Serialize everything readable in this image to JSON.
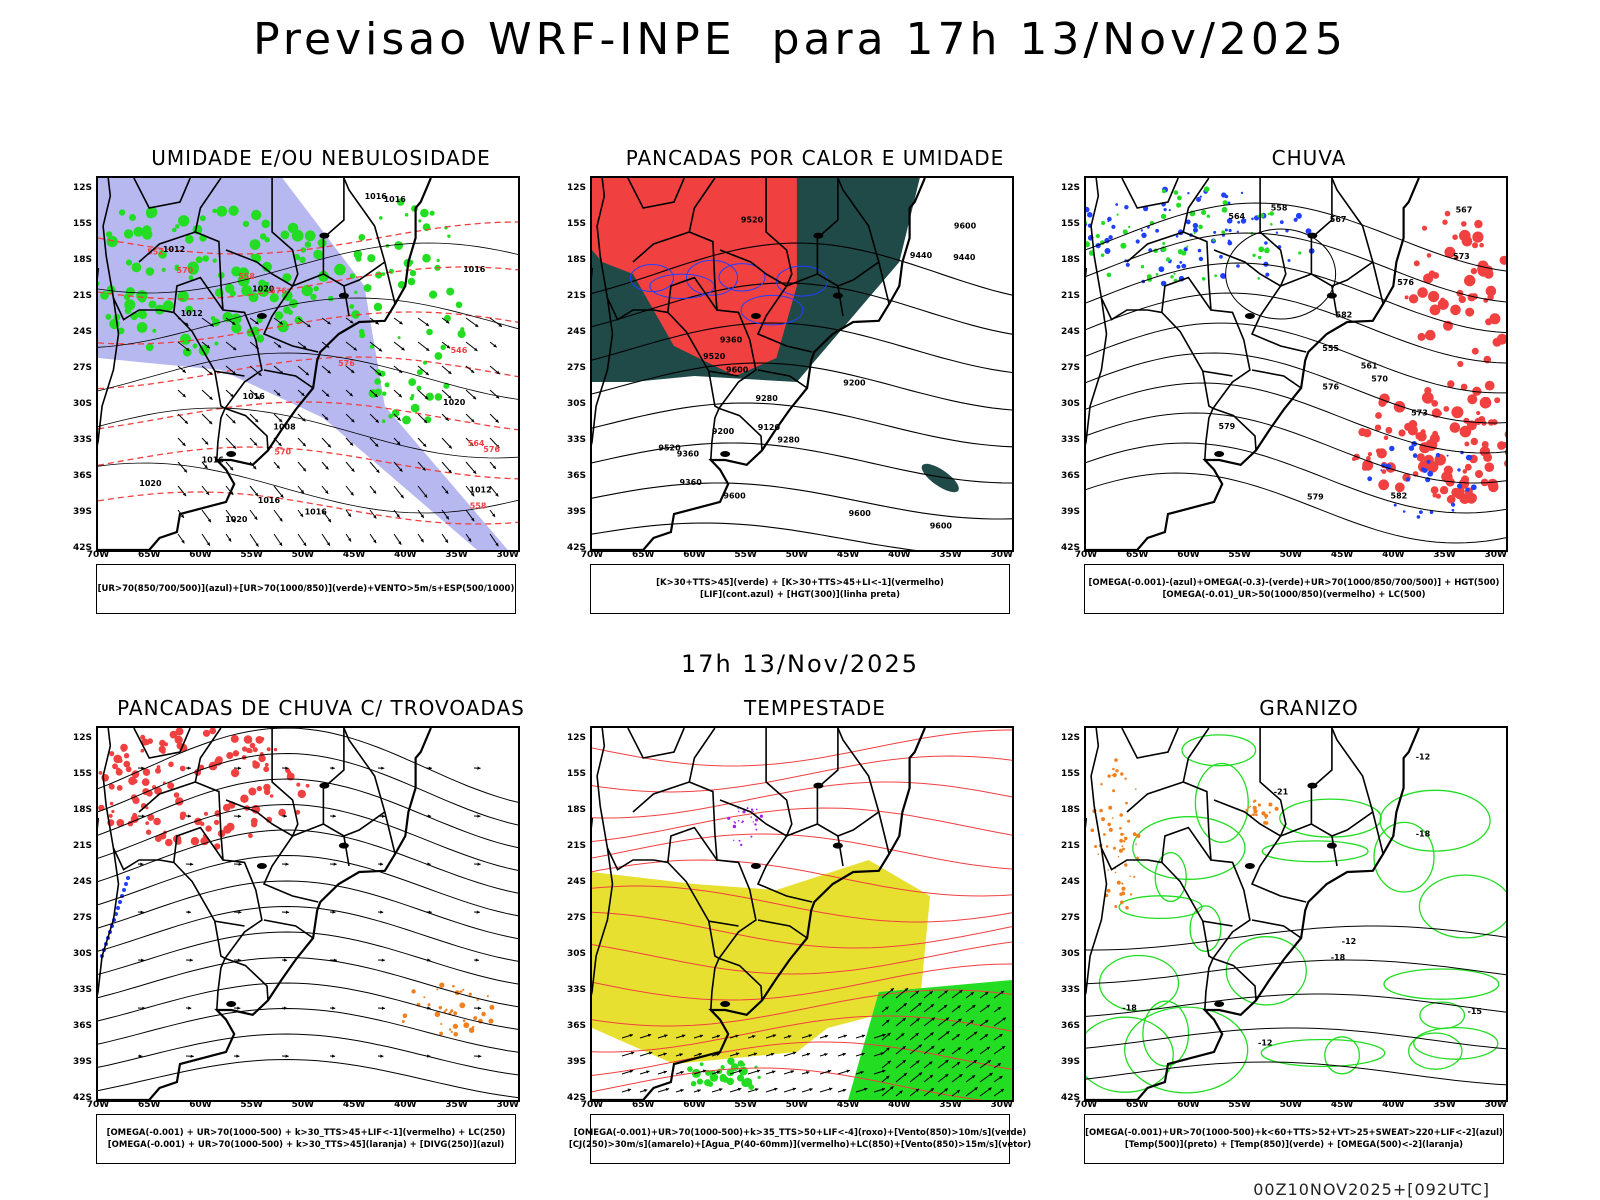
{
  "header": {
    "title": "Previsao WRF-INPE  para 17h 13/Nov/2025",
    "mid_title": "17h 13/Nov/2025",
    "footer": "00Z10NOV2025+[092UTC]"
  },
  "axes": {
    "lat_ticks": [
      "12S",
      "15S",
      "18S",
      "21S",
      "24S",
      "27S",
      "30S",
      "33S",
      "36S",
      "39S",
      "42S"
    ],
    "lon_ticks": [
      "70W",
      "65W",
      "60W",
      "55W",
      "50W",
      "45W",
      "40W",
      "35W",
      "30W"
    ]
  },
  "colors": {
    "red": "#f04040",
    "green": "#22dd22",
    "blue": "#2040ff",
    "lavender": "#b0b0f0",
    "darkteal": "#1f4a48",
    "yellow": "#e8e030",
    "orange": "#f08020",
    "purple": "#a020f0"
  },
  "panels": [
    {
      "id": "umidade",
      "title": "UMIDADE E/OU NEBULOSIDADE",
      "legend": [
        "[UR>70(850/700/500)](azul)+[UR>70(1000/850)](verde)+VENTO>5m/s+ESP(500/1000)"
      ],
      "contour_labels": [
        "1012",
        "1008",
        "1016",
        "1016",
        "1012",
        "1016",
        "1012",
        "1016",
        "1020",
        "1016",
        "1020",
        "1020",
        "1020",
        "1016",
        "1016",
        "576",
        "570",
        "564",
        "558",
        "552",
        "546",
        "558",
        "570",
        "576",
        "576"
      ]
    },
    {
      "id": "pancadas-calor",
      "title": "PANCADAS POR CALOR E UMIDADE",
      "legend": [
        "[K>30+TTS>45](verde) + [K>30+TTS>45+LI<-1](vermelho)",
        "[LIF](cont.azul) + [HGT(300)](linha preta)"
      ],
      "contour_labels": [
        "9600",
        "9600",
        "9600",
        "9600",
        "9520",
        "9520",
        "9520",
        "9440",
        "9440",
        "9360",
        "9360",
        "9280",
        "9280",
        "9200",
        "9120",
        "9200",
        "9600",
        "9360"
      ]
    },
    {
      "id": "chuva",
      "title": "CHUVA",
      "legend": [
        "[OMEGA(-0.001)-(azul)+OMEGA(-0.3)-(verde)+UR>70(1000/850/700/500)] + HGT(500)",
        "[OMEGA(-0.01)_UR>50(1000/850)(vermelho) + LC(500)"
      ],
      "contour_labels": [
        "582",
        "582",
        "579",
        "576",
        "573",
        "570",
        "567",
        "564",
        "561",
        "558",
        "555",
        "579",
        "576",
        "573",
        "567"
      ]
    },
    {
      "id": "trovoadas",
      "title": "PANCADAS DE CHUVA C/ TROVOADAS",
      "legend": [
        "[OMEGA(-0.001) + UR>70(1000-500) + k>30_TTS>45+LIF<-1](vermelho) + LC(250)",
        "[OMEGA(-0.001) + UR>70(1000-500) + k>30_TTS>45](laranja) + [DIVG(250)](azul)"
      ],
      "contour_labels": []
    },
    {
      "id": "tempestade",
      "title": "TEMPESTADE",
      "legend": [
        "[OMEGA(-0.001)+UR>70(1000-500)+k>35_TTS>50+LIF<-4](roxo)+[Vento(850)>10m/s](verde)",
        "[CJ(250)>30m/s](amarelo)+[Agua_P(40-60mm)](vermelho)+LC(850)+[Vento(850)>15m/s](vetor)"
      ],
      "contour_labels": []
    },
    {
      "id": "granizo",
      "title": "GRANIZO",
      "legend": [
        "[OMEGA(-0.001)+UR>70(1000-500)+k<60+TTS>52+VT>25+SWEAT>220+LIF<-2](azul)",
        "[Temp(500)](preto) + [Temp(850)](verde) + [OMEGA(500)<-2](laranja)"
      ],
      "contour_labels": [
        "-12",
        "-12",
        "-12",
        "-15",
        "-18",
        "-18",
        "-21",
        "-18"
      ]
    }
  ]
}
